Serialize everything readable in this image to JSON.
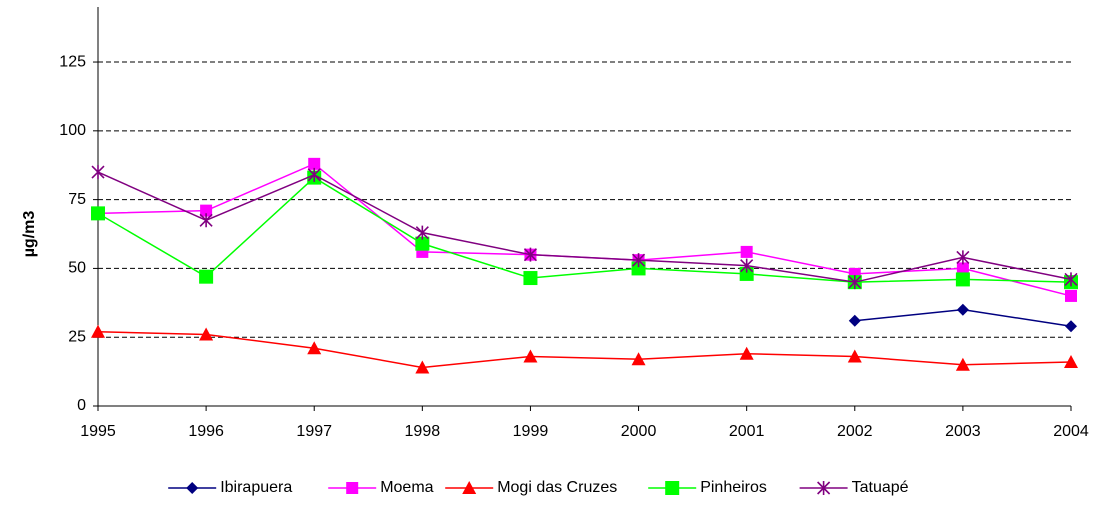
{
  "chart_data": {
    "type": "line",
    "ylabel": "µg/m3",
    "categories": [
      "1995",
      "1996",
      "1997",
      "1998",
      "1999",
      "2000",
      "2001",
      "2002",
      "2003",
      "2004"
    ],
    "series": [
      {
        "name": "Ibirapuera",
        "color": "#000080",
        "marker": "diamond",
        "values": [
          null,
          null,
          null,
          null,
          null,
          null,
          null,
          31,
          35,
          29
        ]
      },
      {
        "name": "Moema",
        "color": "#ff00ff",
        "marker": "square",
        "values": [
          70,
          71,
          88,
          56,
          55,
          53,
          56,
          48,
          50,
          40
        ]
      },
      {
        "name": "Mogi das Cruzes",
        "color": "#ff0000",
        "marker": "triangle",
        "values": [
          27,
          26,
          21,
          14,
          18,
          17,
          19,
          18,
          15,
          16
        ]
      },
      {
        "name": "Pinheiros",
        "color": "#00ff00",
        "marker": "bigsquare",
        "values": [
          70,
          47,
          83,
          59,
          46.5,
          50,
          48,
          45,
          46,
          45
        ]
      },
      {
        "name": "Tatuapé",
        "color": "#800080",
        "marker": "asterisk",
        "values": [
          85,
          67.5,
          84,
          63,
          55,
          53,
          51,
          45,
          54,
          46
        ]
      }
    ],
    "ylim": [
      0,
      145
    ],
    "yticks": [
      0,
      25,
      50,
      75,
      100,
      125
    ],
    "grid": true,
    "legend": "bottom"
  }
}
